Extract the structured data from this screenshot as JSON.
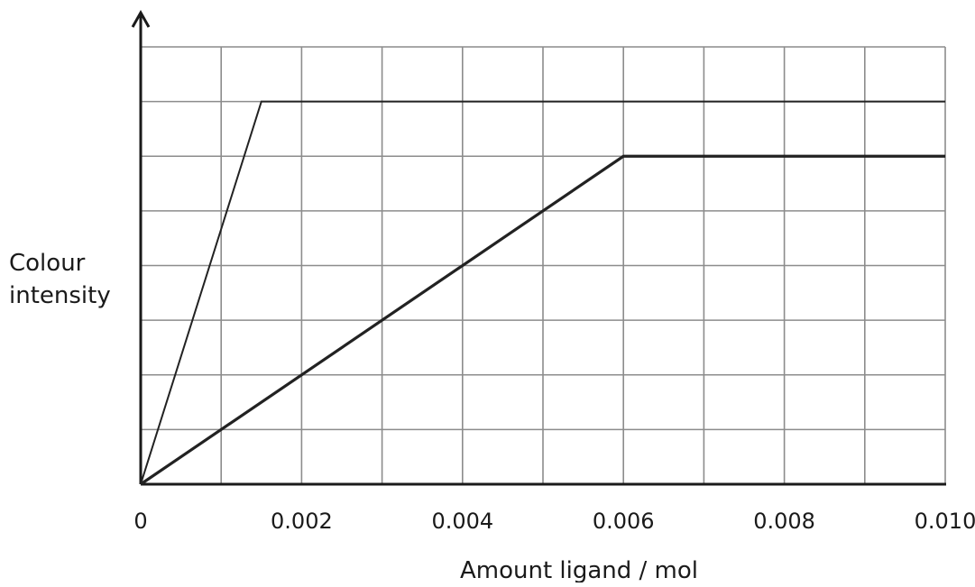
{
  "chart_data": {
    "type": "line",
    "title": "",
    "xlabel": "Amount ligand / mol",
    "ylabel_lines": [
      "Colour",
      "intensity"
    ],
    "xlim": [
      0,
      0.01
    ],
    "ylim": [
      0,
      8
    ],
    "x_ticks": [
      0,
      0.002,
      0.004,
      0.006,
      0.008,
      0.01
    ],
    "x_tick_labels": [
      "0",
      "0.002",
      "0.004",
      "0.006",
      "0.008",
      "0.010"
    ],
    "x_grid_step": 0.001,
    "y_grid_step": 1,
    "grid": true,
    "y_tick_labels_shown": false,
    "series": [
      {
        "x": [
          0,
          0.0015,
          0.01
        ],
        "y": [
          0,
          7,
          7
        ]
      },
      {
        "x": [
          0,
          0.006,
          0.01
        ],
        "y": [
          0,
          6,
          6
        ]
      }
    ]
  }
}
